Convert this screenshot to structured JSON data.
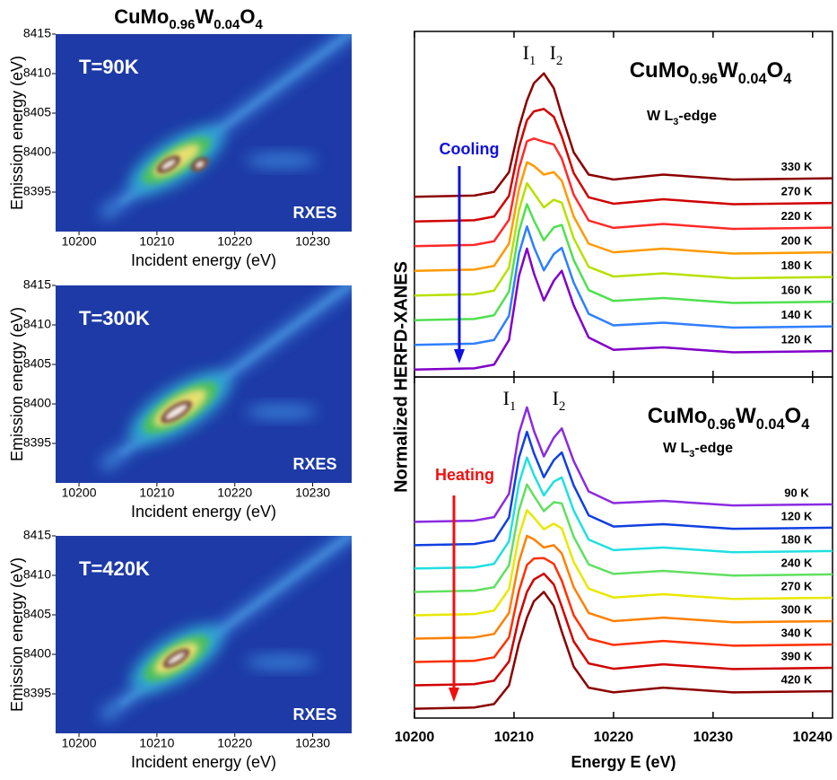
{
  "formula": [
    "CuMo",
    "0.96",
    "W",
    "0.04",
    "O",
    "4"
  ],
  "edge": [
    "W L",
    "3",
    "-edge"
  ],
  "peak_1": [
    "I",
    "1"
  ],
  "peak_2": [
    "I",
    "2"
  ],
  "chart_data": [
    {
      "type": "heatmap",
      "label": "T=90K",
      "tag": "RXES",
      "x_label": "Incident energy (eV)",
      "y_label": "Emission energy (eV)",
      "xlim": [
        10197,
        10235
      ],
      "xticks": [
        10200,
        10210,
        10220,
        10230
      ],
      "ylim": [
        8390,
        8415
      ],
      "yticks": [
        8395,
        8400,
        8405,
        8410,
        8415
      ]
    },
    {
      "type": "heatmap",
      "label": "T=300K",
      "tag": "RXES",
      "x_label": "Incident energy (eV)",
      "y_label": "Emission energy (eV)",
      "xlim": [
        10197,
        10235
      ],
      "xticks": [
        10200,
        10210,
        10220,
        10230
      ],
      "ylim": [
        8390,
        8415
      ],
      "yticks": [
        8395,
        8400,
        8405,
        8410,
        8415
      ]
    },
    {
      "type": "heatmap",
      "label": "T=420K",
      "tag": "RXES",
      "x_label": "Incident energy (eV)",
      "y_label": "Emission energy (eV)",
      "xlim": [
        10197,
        10235
      ],
      "xticks": [
        10200,
        10210,
        10220,
        10230
      ],
      "ylim": [
        8390,
        8415
      ],
      "yticks": [
        8395,
        8400,
        8405,
        8410,
        8415
      ]
    },
    {
      "type": "line",
      "annotation": "Cooling",
      "annotation_color": "#1010e0",
      "xlim": [
        10200,
        10242
      ],
      "xticks": [
        10200,
        10210,
        10220,
        10230,
        10240
      ],
      "ylim": [
        0,
        14
      ],
      "x": [
        10200,
        10206,
        10208,
        10209.5,
        10210.5,
        10211.3,
        10212,
        10213,
        10214,
        10214.8,
        10216,
        10217.5,
        10220,
        10225,
        10232,
        10242
      ],
      "series": [
        {
          "name": "330 K",
          "color": "#8b0000",
          "values": [
            7.3,
            7.35,
            7.5,
            8.3,
            10.1,
            11.2,
            11.9,
            12.3,
            11.7,
            10.6,
            9.1,
            8.2,
            8.0,
            8.2,
            8.0,
            8.05
          ]
        },
        {
          "name": "270 K",
          "color": "#d00000",
          "values": [
            6.3,
            6.35,
            6.5,
            7.34,
            9.3,
            10.4,
            10.76,
            10.86,
            10.54,
            9.74,
            8.26,
            7.28,
            7.02,
            7.2,
            7.0,
            7.05
          ]
        },
        {
          "name": "220 K",
          "color": "#ff2a2a",
          "values": [
            5.3,
            5.35,
            5.5,
            6.37,
            8.45,
            9.55,
            9.66,
            9.53,
            9.42,
            8.85,
            7.38,
            6.34,
            6.04,
            6.2,
            6.0,
            6.05
          ]
        },
        {
          "name": "200 K",
          "color": "#ff9a00",
          "values": [
            4.3,
            4.35,
            4.5,
            5.4,
            7.6,
            8.7,
            8.55,
            8.2,
            8.3,
            7.95,
            6.5,
            5.4,
            5.05,
            5.2,
            5.0,
            5.05
          ]
        },
        {
          "name": "180 K",
          "color": "#b8e000",
          "values": [
            3.3,
            3.35,
            3.5,
            4.43,
            6.75,
            7.85,
            7.45,
            6.87,
            7.18,
            7.06,
            5.62,
            4.46,
            4.07,
            4.2,
            4.0,
            4.05
          ]
        },
        {
          "name": "160 K",
          "color": "#50e050",
          "values": [
            2.3,
            2.35,
            2.5,
            3.46,
            5.9,
            7.0,
            6.34,
            5.54,
            6.06,
            6.16,
            4.74,
            3.52,
            3.08,
            3.2,
            3.0,
            3.05
          ]
        },
        {
          "name": "140 K",
          "color": "#2f7fff",
          "values": [
            1.3,
            1.35,
            1.5,
            2.48,
            5.0,
            6.1,
            5.27,
            4.32,
            4.98,
            5.23,
            3.82,
            2.56,
            2.09,
            2.2,
            2.0,
            2.05
          ]
        },
        {
          "name": "120 K",
          "color": "#8000c8",
          "values": [
            0.3,
            0.35,
            0.5,
            1.5,
            4.1,
            5.2,
            4.2,
            3.1,
            3.9,
            4.3,
            2.9,
            1.6,
            1.1,
            1.2,
            1.0,
            1.05
          ]
        }
      ]
    },
    {
      "type": "line",
      "annotation": "Heating",
      "annotation_color": "#ee1010",
      "x_label": "Energy E (eV)",
      "y_label": "Normalized HERFD-XANES",
      "xlim": [
        10200,
        10242
      ],
      "xticks": [
        10200,
        10210,
        10220,
        10230,
        10240
      ],
      "ylim": [
        0,
        14.6
      ],
      "x": [
        10200,
        10206,
        10208,
        10209.5,
        10210.5,
        10211.3,
        10212,
        10213,
        10214,
        10214.8,
        10216,
        10217.5,
        10220,
        10225,
        10232,
        10242
      ],
      "series": [
        {
          "name": "90 K",
          "color": "#8a2be2",
          "values": [
            8.4,
            8.45,
            8.6,
            9.6,
            12.2,
            13.3,
            12.3,
            11.2,
            12.0,
            12.4,
            11.0,
            9.7,
            9.2,
            9.3,
            9.1,
            9.15
          ]
        },
        {
          "name": "120 K",
          "color": "#1040e0",
          "values": [
            7.4,
            7.45,
            7.6,
            8.59,
            11.15,
            12.25,
            11.34,
            10.31,
            11.04,
            11.37,
            9.96,
            8.68,
            8.2,
            8.3,
            8.1,
            8.15
          ]
        },
        {
          "name": "180 K",
          "color": "#20e0e0",
          "values": [
            6.4,
            6.45,
            6.6,
            7.57,
            10.05,
            11.15,
            10.41,
            9.53,
            10.12,
            10.3,
            8.88,
            7.64,
            7.19,
            7.3,
            7.1,
            7.15
          ]
        },
        {
          "name": "240 K",
          "color": "#60e060",
          "values": [
            5.4,
            5.45,
            5.6,
            6.54,
            8.9,
            10.0,
            9.51,
            8.86,
            9.24,
            9.19,
            7.76,
            6.58,
            6.17,
            6.3,
            6.1,
            6.15
          ]
        },
        {
          "name": "270 K",
          "color": "#e8e800",
          "values": [
            4.4,
            4.45,
            4.6,
            5.52,
            7.8,
            8.9,
            8.58,
            8.08,
            8.32,
            8.12,
            6.68,
            5.54,
            5.16,
            5.3,
            5.1,
            5.15
          ]
        },
        {
          "name": "300 K",
          "color": "#ff8000",
          "values": [
            3.4,
            3.45,
            3.6,
            4.5,
            6.7,
            7.8,
            7.65,
            7.3,
            7.4,
            7.05,
            5.6,
            4.5,
            4.15,
            4.3,
            4.1,
            4.15
          ]
        },
        {
          "name": "340 K",
          "color": "#ff3000",
          "values": [
            2.4,
            2.45,
            2.6,
            3.45,
            5.45,
            6.55,
            6.83,
            6.85,
            6.6,
            5.88,
            4.4,
            3.4,
            3.13,
            3.3,
            3.1,
            3.15
          ]
        },
        {
          "name": "390 K",
          "color": "#d00000",
          "values": [
            1.4,
            1.45,
            1.6,
            2.42,
            4.3,
            5.4,
            5.93,
            6.18,
            5.72,
            4.77,
            3.28,
            2.34,
            2.11,
            2.3,
            2.1,
            2.15
          ]
        },
        {
          "name": "420 K",
          "color": "#8b0000",
          "values": [
            0.4,
            0.45,
            0.6,
            1.4,
            3.2,
            4.3,
            5.0,
            5.4,
            4.8,
            3.7,
            2.2,
            1.3,
            1.1,
            1.3,
            1.1,
            1.15
          ]
        }
      ]
    }
  ]
}
